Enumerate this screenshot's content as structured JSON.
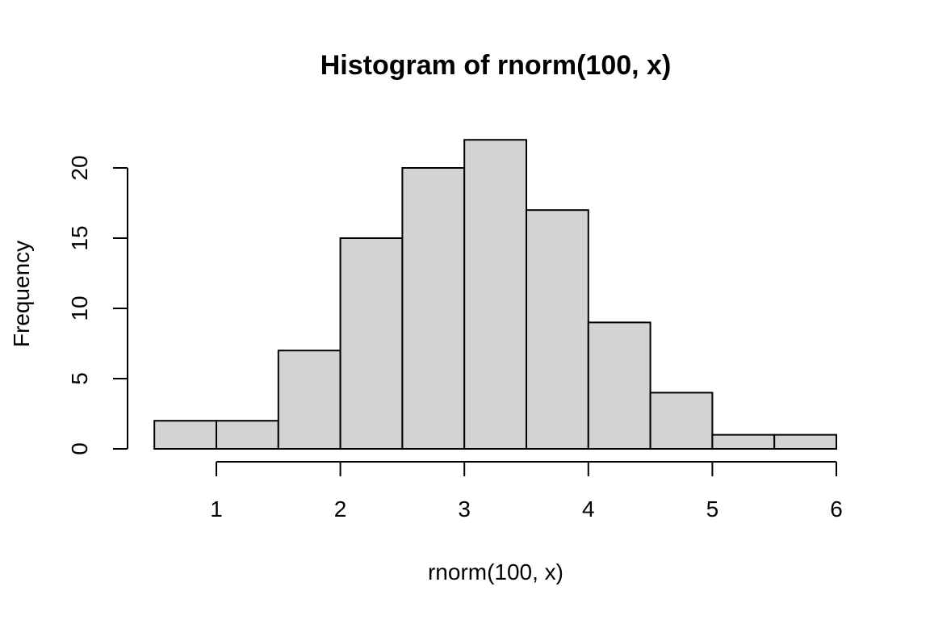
{
  "chart_data": {
    "type": "bar",
    "title": "Histogram of rnorm(100, x)",
    "xlabel": "rnorm(100, x)",
    "ylabel": "Frequency",
    "bins": [
      {
        "x0": 0.5,
        "x1": 1.0,
        "count": 2
      },
      {
        "x0": 1.0,
        "x1": 1.5,
        "count": 2
      },
      {
        "x0": 1.5,
        "x1": 2.0,
        "count": 7
      },
      {
        "x0": 2.0,
        "x1": 2.5,
        "count": 15
      },
      {
        "x0": 2.5,
        "x1": 3.0,
        "count": 20
      },
      {
        "x0": 3.0,
        "x1": 3.5,
        "count": 22
      },
      {
        "x0": 3.5,
        "x1": 4.0,
        "count": 17
      },
      {
        "x0": 4.0,
        "x1": 4.5,
        "count": 9
      },
      {
        "x0": 4.5,
        "x1": 5.0,
        "count": 4
      },
      {
        "x0": 5.0,
        "x1": 5.5,
        "count": 1
      },
      {
        "x0": 5.5,
        "x1": 6.0,
        "count": 1
      }
    ],
    "xticks": [
      1,
      2,
      3,
      4,
      5,
      6
    ],
    "yticks": [
      0,
      5,
      10,
      15,
      20
    ],
    "grid": false,
    "bar_color": "#d3d3d3",
    "border_color": "#000000"
  }
}
